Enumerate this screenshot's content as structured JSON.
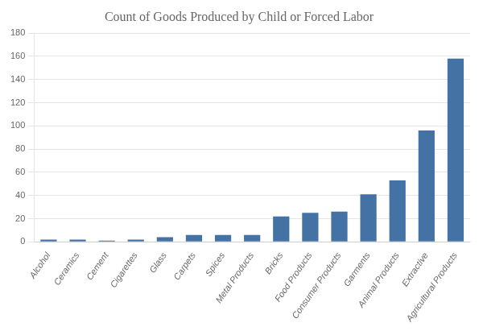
{
  "chart_data": {
    "type": "bar",
    "title": "Count of Goods Produced by Child or Forced Labor",
    "categories": [
      "Alcohol",
      "Ceramics",
      "Cement",
      "Cigarettes",
      "Glass",
      "Carpets",
      "Spices",
      "Metal Products",
      "Bricks",
      "Food Products",
      "Consumer Products",
      "Garments",
      "Animal Products",
      "Extractive",
      "Agricultural Products"
    ],
    "values": [
      2,
      2,
      1,
      2,
      4,
      6,
      6,
      6,
      22,
      25,
      26,
      41,
      53,
      96,
      158
    ],
    "color": "#4472a4",
    "ylim": [
      0,
      180
    ],
    "yticks": [
      0,
      20,
      40,
      60,
      80,
      100,
      120,
      140,
      160,
      180
    ],
    "grid": true
  }
}
